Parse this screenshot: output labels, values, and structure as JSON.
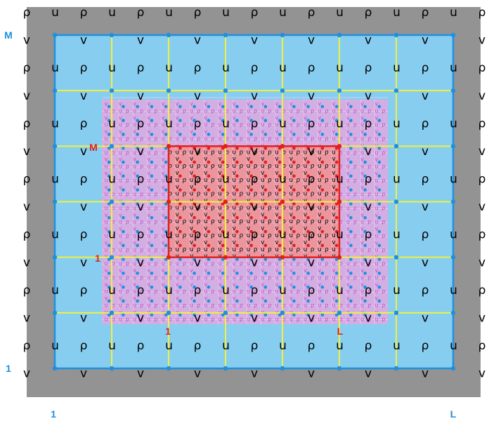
{
  "colors": {
    "background": "#ffffff",
    "ghost_band": "#939393",
    "coarse_domain": "#87cdf0",
    "coarse_border": "#1e90e0",
    "grid_line": "#f0f040",
    "node": "#1e90e0",
    "fine_patch": "#e0a8e0",
    "fine_letters": "#b54fc7",
    "refined_region": "#f09090",
    "refined_border": "#e02020",
    "refined_node": "#e02020",
    "coarse_label": "#1e90e0",
    "refined_label": "#e02020"
  },
  "glyphs": {
    "density": "ρ",
    "u_velocity": "u",
    "v_velocity": "v"
  },
  "coarse_labels": {
    "row_top": "M",
    "row_bottom": "1",
    "col_left": "1",
    "col_right": "L"
  },
  "refined_labels": {
    "row_top": "M",
    "row_bottom": "1",
    "col_left": "1",
    "col_right": "L"
  }
}
